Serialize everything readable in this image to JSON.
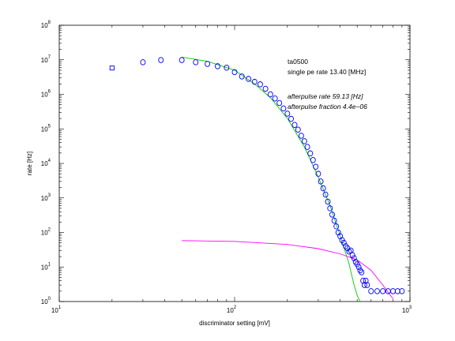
{
  "chart_data": {
    "type": "scatter",
    "title": "",
    "xlabel": "discriminator setting [mV]",
    "ylabel": "rate [Hz]",
    "x_scale": "log",
    "y_scale": "log",
    "xlim": [
      10,
      1000
    ],
    "ylim": [
      1,
      100000000
    ],
    "grid": false,
    "legend": "none",
    "x_ticks": [
      {
        "base": "10",
        "exp": "1",
        "value": 10
      },
      {
        "base": "10",
        "exp": "2",
        "value": 100
      },
      {
        "base": "10",
        "exp": "3",
        "value": 1000
      }
    ],
    "y_ticks": [
      {
        "base": "10",
        "exp": "0",
        "value": 1
      },
      {
        "base": "10",
        "exp": "1",
        "value": 10
      },
      {
        "base": "10",
        "exp": "2",
        "value": 100
      },
      {
        "base": "10",
        "exp": "3",
        "value": 1000
      },
      {
        "base": "10",
        "exp": "4",
        "value": 10000
      },
      {
        "base": "10",
        "exp": "5",
        "value": 100000
      },
      {
        "base": "10",
        "exp": "6",
        "value": 1000000
      },
      {
        "base": "10",
        "exp": "7",
        "value": 10000000
      },
      {
        "base": "10",
        "exp": "8",
        "value": 100000000
      }
    ],
    "annotations": [
      "ta0500",
      "single pe rate 13.40 [MHz]",
      "afterpulse rate 59.13 [Hz]",
      "afterpulse fraction 4.4e−06"
    ],
    "series": [
      {
        "marker": "circle",
        "color": "#0000ff",
        "points": [
          [
            30,
            8500000
          ],
          [
            38,
            9800000
          ],
          [
            50,
            9800000
          ],
          [
            60,
            8500000
          ],
          [
            70,
            7600000
          ],
          [
            80,
            6500000
          ],
          [
            90,
            5900000
          ],
          [
            100,
            4400000
          ],
          [
            110,
            3300000
          ],
          [
            120,
            2800000
          ],
          [
            130,
            2300000
          ],
          [
            140,
            1950000
          ],
          [
            150,
            1450000
          ],
          [
            160,
            1000000
          ],
          [
            170,
            760000
          ],
          [
            180,
            560000
          ],
          [
            190,
            390000
          ],
          [
            200,
            275000
          ],
          [
            210,
            195000
          ],
          [
            220,
            130000
          ],
          [
            230,
            95000
          ],
          [
            240,
            63000
          ],
          [
            250,
            44000
          ],
          [
            260,
            30000
          ],
          [
            270,
            19500
          ],
          [
            280,
            12500
          ],
          [
            290,
            8000
          ],
          [
            300,
            5000
          ],
          [
            310,
            3000
          ],
          [
            320,
            1900
          ],
          [
            330,
            1250
          ],
          [
            340,
            780
          ],
          [
            350,
            500
          ],
          [
            360,
            330
          ],
          [
            370,
            220
          ],
          [
            380,
            150
          ],
          [
            390,
            100
          ],
          [
            400,
            78
          ],
          [
            410,
            60
          ],
          [
            420,
            50
          ],
          [
            430,
            40
          ],
          [
            440,
            35
          ],
          [
            450,
            28
          ],
          [
            460,
            30
          ],
          [
            470,
            22
          ],
          [
            480,
            18
          ],
          [
            490,
            14
          ],
          [
            500,
            12
          ],
          [
            510,
            10
          ],
          [
            520,
            8
          ],
          [
            530,
            7
          ],
          [
            540,
            4
          ],
          [
            550,
            3
          ],
          [
            560,
            4
          ],
          [
            570,
            3
          ],
          [
            600,
            2
          ],
          [
            650,
            2
          ],
          [
            700,
            2
          ],
          [
            750,
            2
          ],
          [
            800,
            2
          ],
          [
            850,
            2
          ],
          [
            900,
            2
          ]
        ]
      },
      {
        "marker": "square",
        "color": "#0000ff",
        "points": [
          [
            20,
            5800000
          ]
        ]
      },
      {
        "marker": "line",
        "color": "#00cc00",
        "points": [
          [
            50,
            12000000
          ],
          [
            70,
            9000000
          ],
          [
            100,
            5000000
          ],
          [
            130,
            2000000
          ],
          [
            160,
            800000
          ],
          [
            200,
            200000
          ],
          [
            250,
            30000
          ],
          [
            300,
            4000
          ],
          [
            350,
            600
          ],
          [
            400,
            80
          ],
          [
            450,
            12
          ],
          [
            480,
            3
          ],
          [
            500,
            1.5
          ],
          [
            520,
            1
          ]
        ]
      },
      {
        "marker": "line",
        "color": "#ff00ff",
        "points": [
          [
            50,
            58
          ],
          [
            100,
            55
          ],
          [
            200,
            45
          ],
          [
            300,
            34
          ],
          [
            400,
            24
          ],
          [
            500,
            16
          ],
          [
            600,
            8
          ],
          [
            700,
            3
          ],
          [
            800,
            1.2
          ]
        ]
      }
    ]
  }
}
